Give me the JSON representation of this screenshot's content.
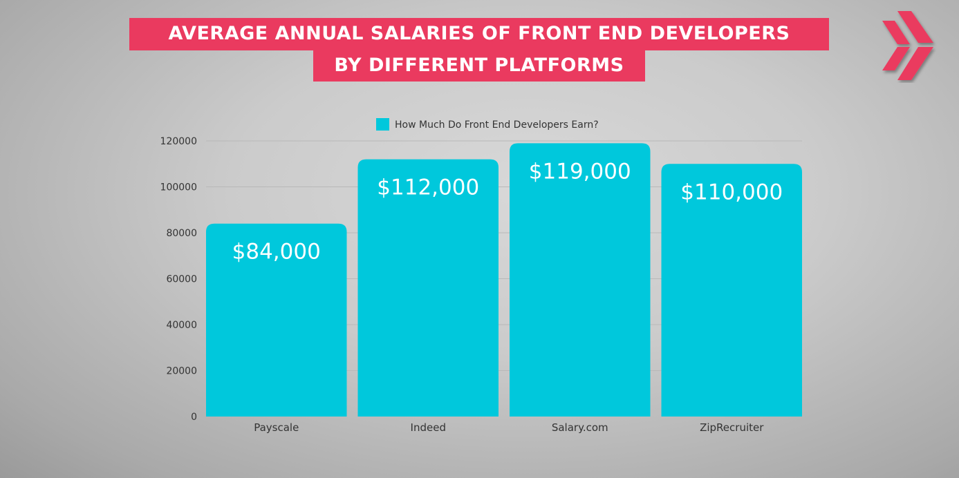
{
  "title": {
    "line1": "AVERAGE ANNUAL SALARIES OF FRONT END DEVELOPERS",
    "line2": "BY DIFFERENT PLATFORMS"
  },
  "logo": {
    "icon": "double-chevron-right-icon",
    "color": "#ea3a5f"
  },
  "chart_data": {
    "type": "bar",
    "categories": [
      "Payscale",
      "Indeed",
      "Salary.com",
      "ZipRecruiter"
    ],
    "series": [
      {
        "name": "How Much Do Front End Developers Earn?",
        "values": [
          84000,
          112000,
          119000,
          110000
        ],
        "color": "#00c8dc"
      }
    ],
    "data_labels": [
      "$84,000",
      "$112,000",
      "$119,000",
      "$110,000"
    ],
    "ylim": [
      0,
      120000
    ],
    "yticks": [
      0,
      20000,
      40000,
      60000,
      80000,
      100000,
      120000
    ],
    "grid": true,
    "legend": "top-center"
  }
}
